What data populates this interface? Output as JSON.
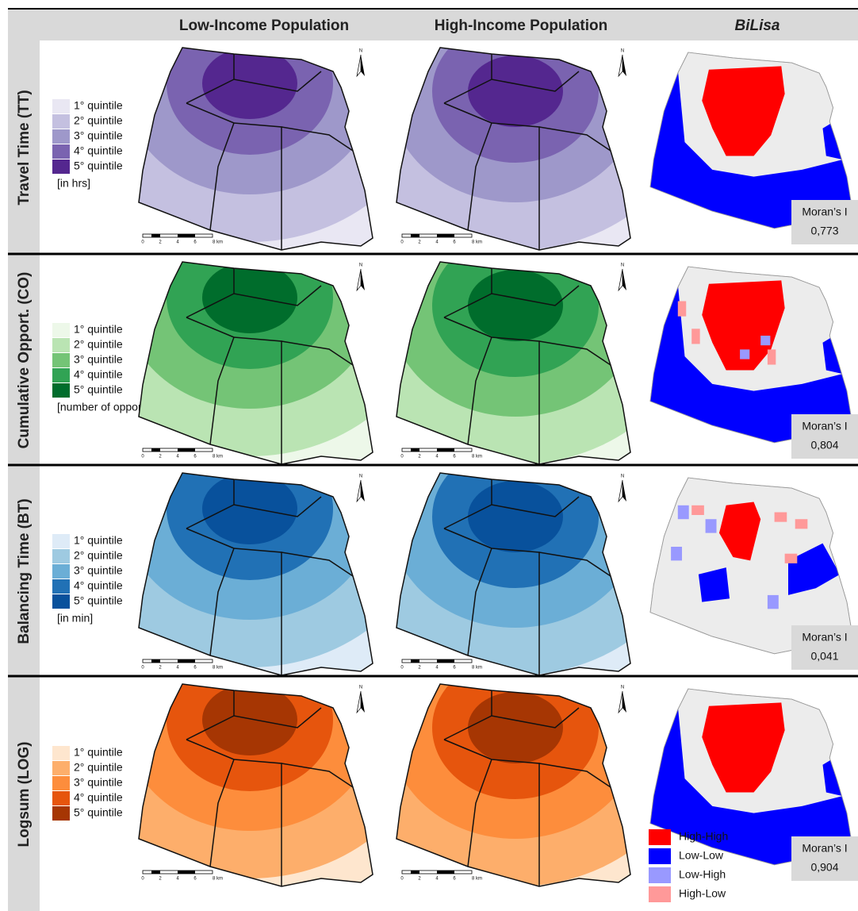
{
  "header": {
    "columns": [
      "Low-Income Population",
      "High-Income Population",
      "BiLisa"
    ]
  },
  "rows": [
    {
      "label": "Travel Time (TT)",
      "legend": [
        "1° quintile",
        "2° quintile",
        "3° quintile",
        "4° quintile",
        "5° quintile"
      ],
      "unit": "[in hrs]",
      "morans_i": "0,773"
    },
    {
      "label": "Cumulative Opport. (CO)",
      "legend": [
        "1° quintile",
        "2° quintile",
        "3° quintile",
        "4° quintile",
        "5° quintile"
      ],
      "unit": "[number of opport.]",
      "morans_i": "0,804"
    },
    {
      "label": "Balancing Time (BT)",
      "legend": [
        "1° quintile",
        "2° quintile",
        "3° quintile",
        "4° quintile",
        "5° quintile"
      ],
      "unit": "[in min]",
      "morans_i": "0,041"
    },
    {
      "label": "Logsum (LOG)",
      "legend": [
        "1° quintile",
        "2° quintile",
        "3° quintile",
        "4° quintile",
        "5° quintile"
      ],
      "morans_i": "0,904"
    }
  ],
  "morans_i_label": "Moran’s I",
  "north": "N",
  "scale_bar": [
    "0",
    "2",
    "4",
    "6",
    "8 km"
  ],
  "bilisa_legend": [
    "High-High",
    "Low-Low",
    "Low-High",
    "High-Low"
  ]
}
